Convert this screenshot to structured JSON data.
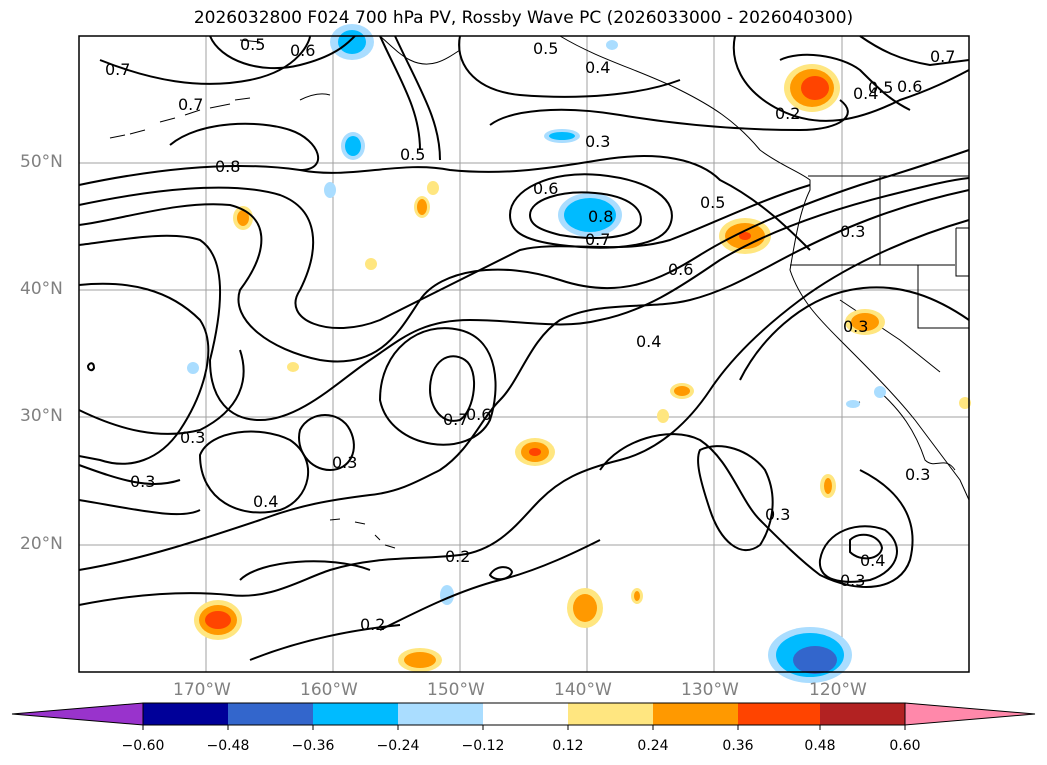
{
  "title": "2026032800 F024 700 hPa PV, Rossby Wave PC (2026033000 - 2026040300)",
  "lat_labels": [
    "50°N",
    "40°N",
    "30°N",
    "20°N"
  ],
  "lon_labels": [
    "170°W",
    "160°W",
    "150°W",
    "140°W",
    "130°W",
    "120°W"
  ],
  "colorbar": {
    "labels": [
      "−0.60",
      "−0.48",
      "−0.36",
      "−0.24",
      "−0.12",
      "0.12",
      "0.24",
      "0.36",
      "0.48",
      "0.60"
    ],
    "colors": [
      "#9933cc",
      "#000099",
      "#3366cc",
      "#00bbff",
      "#aaddff",
      "#ffffff",
      "#ffe680",
      "#ff9900",
      "#ff4400",
      "#b22222",
      "#ff88aa"
    ]
  },
  "contour_labels": [
    "0.5",
    "0.6",
    "0.7",
    "0.7",
    "0.8",
    "0.5",
    "0.5",
    "0.4",
    "0.3",
    "0.6",
    "0.8",
    "0.7",
    "0.2",
    "0.5",
    "0.4",
    "0.6",
    "0.7",
    "0.5",
    "0.3",
    "0.6",
    "0.4",
    "0.7",
    "0.6",
    "0.3",
    "0.3",
    "0.3",
    "0.4",
    "0.2",
    "0.2",
    "0.3",
    "0.3",
    "0.4",
    "0.3",
    "0.3"
  ]
}
